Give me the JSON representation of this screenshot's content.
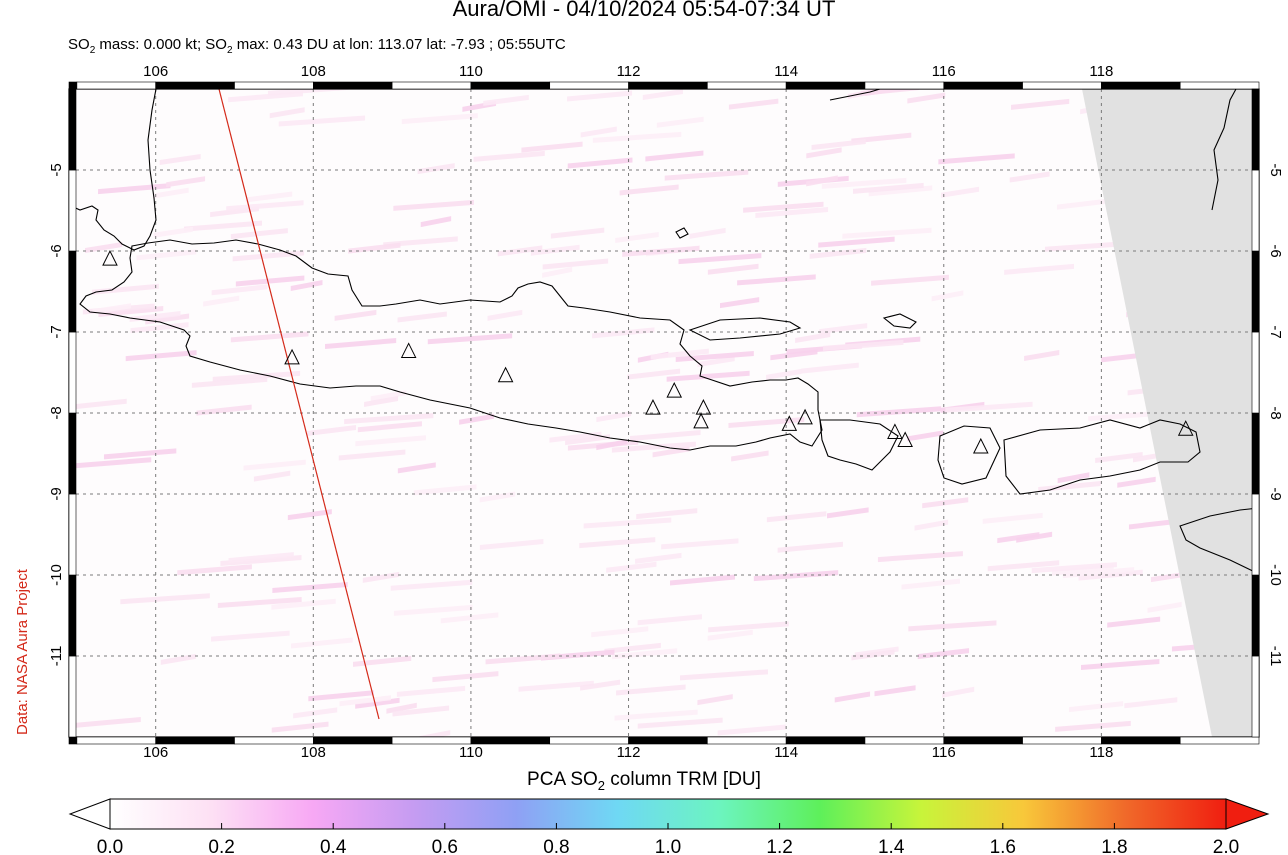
{
  "header": {
    "title": "Aura/OMI - 04/10/2024 05:54-07:34 UT",
    "subtitle_pre": "SO",
    "subtitle_sub": "2",
    "subtitle_mid": " mass: 0.000 kt; SO",
    "subtitle_sub2": "2",
    "subtitle_post": " max: 0.43 DU at lon: 113.07 lat: -7.93 ; 05:55UTC"
  },
  "credit": "Data: NASA Aura Project",
  "map": {
    "lon_ticks": [
      "106",
      "108",
      "110",
      "112",
      "114",
      "116",
      "118"
    ],
    "lat_ticks": [
      "-5",
      "-6",
      "-7",
      "-8",
      "-9",
      "-10",
      "-11"
    ],
    "lon_range": [
      104.9,
      120.0
    ],
    "lat_range": [
      -12.0,
      -4.0
    ],
    "grid": true,
    "volcano_marker": "triangle-outline",
    "volcanoes": [
      {
        "lon": 105.42,
        "lat": -6.1
      },
      {
        "lon": 107.73,
        "lat": -7.32
      },
      {
        "lon": 109.21,
        "lat": -7.24
      },
      {
        "lon": 110.44,
        "lat": -7.54
      },
      {
        "lon": 112.31,
        "lat": -7.94
      },
      {
        "lon": 112.58,
        "lat": -7.73
      },
      {
        "lon": 112.95,
        "lat": -7.94
      },
      {
        "lon": 112.92,
        "lat": -8.11
      },
      {
        "lon": 114.04,
        "lat": -8.14
      },
      {
        "lon": 114.24,
        "lat": -8.06
      },
      {
        "lon": 115.38,
        "lat": -8.24
      },
      {
        "lon": 115.51,
        "lat": -8.34
      },
      {
        "lon": 116.47,
        "lat": -8.42
      },
      {
        "lon": 119.07,
        "lat": -8.2
      }
    ],
    "swath_edge_color": "#d42a1a",
    "no_data_color": "#e1e1e1"
  },
  "colorbar": {
    "title_pre": "PCA SO",
    "title_sub": "2",
    "title_post": " column TRM [DU]",
    "ticks": [
      "0.0",
      "0.2",
      "0.4",
      "0.6",
      "0.8",
      "1.0",
      "1.2",
      "1.4",
      "1.6",
      "1.8",
      "2.0"
    ],
    "range": [
      0.0,
      2.0
    ],
    "colors": [
      "#ffffff",
      "#fde0f4",
      "#f7a8f4",
      "#c59cf2",
      "#8fa0f4",
      "#6fd8f4",
      "#6cf4c0",
      "#5ef05a",
      "#c8f43a",
      "#f8c83a",
      "#f06a2a",
      "#f01e10"
    ]
  }
}
